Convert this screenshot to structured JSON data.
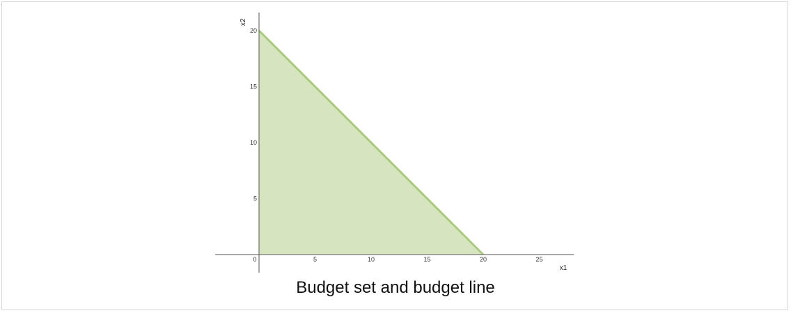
{
  "chart_data": {
    "type": "area",
    "title": "",
    "caption": "Budget set and budget line",
    "xlabel": "x1",
    "ylabel": "x2",
    "xlim": [
      0,
      28
    ],
    "ylim": [
      0,
      21
    ],
    "xticks": [
      0,
      5,
      10,
      15,
      20,
      25
    ],
    "yticks": [
      5,
      10,
      15,
      20
    ],
    "origin_label": "0",
    "grid": false,
    "legend": "none",
    "series": [
      {
        "x": [
          0,
          20
        ],
        "y": [
          20,
          0
        ]
      }
    ],
    "colors": {
      "fill": "#d6e5bf",
      "line": "#a9cb7e",
      "axis": "#555555"
    }
  }
}
